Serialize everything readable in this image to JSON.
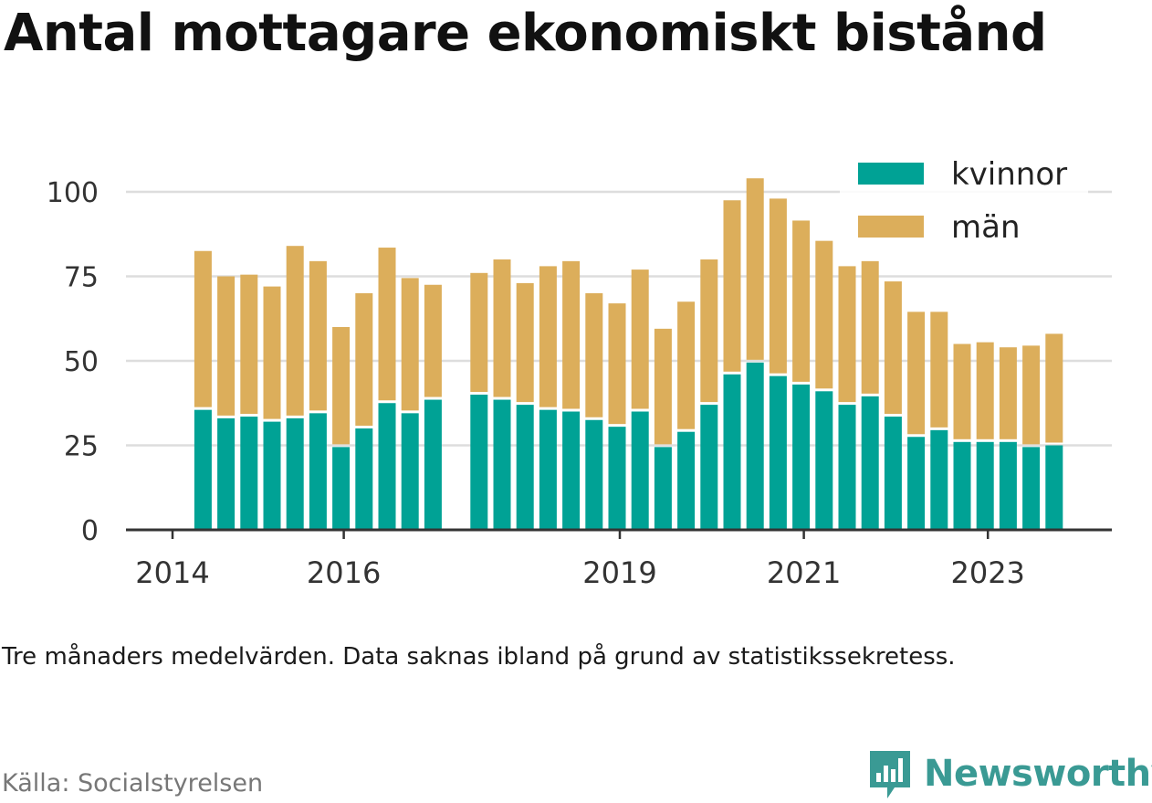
{
  "title": "Antal mottagare ekonomiskt bistånd",
  "note": "Tre månaders medelvärden. Data saknas ibland på grund av statistikssekretess.",
  "source": "Källa: Socialstyrelsen",
  "brand": {
    "name": "Newsworthy",
    "icon": "newsworthy-logo-icon"
  },
  "colors": {
    "kvinnor": "#00a295",
    "man": "#dcae5b",
    "grid": "#dddddd",
    "axis": "#333333"
  },
  "chart_data": {
    "type": "bar",
    "stacked": true,
    "ylim": [
      0,
      110
    ],
    "yticks": [
      0,
      25,
      50,
      75,
      100
    ],
    "xticks": [
      {
        "label": "2014",
        "index": 0
      },
      {
        "label": "2016",
        "index": 8
      },
      {
        "label": "2019",
        "index": 20
      },
      {
        "label": "2021",
        "index": 28
      },
      {
        "label": "2023",
        "index": 36
      }
    ],
    "legend_position": "top-right",
    "series": [
      {
        "name": "kvinnor",
        "values": [
          null,
          null,
          35.5,
          33,
          33.5,
          32,
          33,
          34.5,
          24.5,
          30,
          37.5,
          34.5,
          38.5,
          null,
          40,
          38.5,
          37,
          35.5,
          35,
          32.5,
          30.5,
          35,
          24.5,
          29,
          37,
          46,
          49.5,
          45.5,
          43,
          41,
          37,
          39.5,
          33.5,
          27.5,
          29.5,
          26,
          26,
          26,
          24.5,
          25
        ]
      },
      {
        "name": "män",
        "values": [
          null,
          null,
          47,
          42,
          42,
          40,
          51,
          45,
          35.5,
          40,
          46,
          40,
          34,
          null,
          36,
          41.5,
          36,
          42.5,
          44.5,
          37.5,
          36.5,
          42,
          35,
          38.5,
          43,
          51.5,
          54.5,
          52.5,
          48.5,
          44.5,
          41,
          40,
          40,
          37,
          35,
          29,
          29.5,
          28,
          30,
          33
        ]
      }
    ]
  }
}
